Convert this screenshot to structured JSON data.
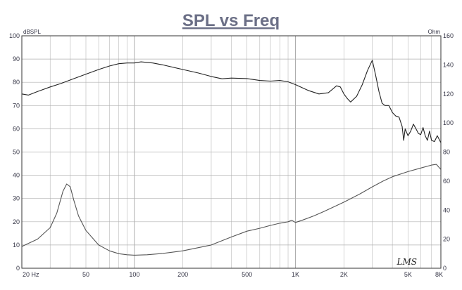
{
  "chart_data": {
    "type": "line",
    "title": "SPL vs Freq",
    "left_axis_unit": "dBSPL",
    "right_axis_unit": "Ohm",
    "x_scale": "log",
    "xlim": [
      20,
      8000
    ],
    "ylim_left": [
      0,
      100
    ],
    "ylim_right": [
      0,
      160
    ],
    "grid": true,
    "x_ticks": [
      {
        "value": 20,
        "label": "20  Hz"
      },
      {
        "value": 50,
        "label": "50"
      },
      {
        "value": 100,
        "label": "100"
      },
      {
        "value": 200,
        "label": "200"
      },
      {
        "value": 500,
        "label": "500"
      },
      {
        "value": 1000,
        "label": "1K"
      },
      {
        "value": 2000,
        "label": "2K"
      },
      {
        "value": 5000,
        "label": "5K"
      },
      {
        "value": 8000,
        "label": "8K"
      }
    ],
    "y_ticks_left": [
      0,
      10,
      20,
      30,
      40,
      50,
      60,
      70,
      80,
      90,
      100
    ],
    "y_ticks_right": [
      0,
      20,
      40,
      60,
      80,
      100,
      120,
      140,
      160
    ],
    "logo_text": "LMS",
    "series": [
      {
        "axis": "left",
        "color": "#222222",
        "points": [
          [
            20,
            75
          ],
          [
            22,
            74.5
          ],
          [
            25,
            76
          ],
          [
            30,
            78
          ],
          [
            35,
            79.5
          ],
          [
            40,
            81
          ],
          [
            50,
            83.5
          ],
          [
            60,
            85.5
          ],
          [
            70,
            87
          ],
          [
            80,
            88
          ],
          [
            90,
            88.3
          ],
          [
            100,
            88.3
          ],
          [
            110,
            88.8
          ],
          [
            130,
            88.3
          ],
          [
            150,
            87.5
          ],
          [
            200,
            85.5
          ],
          [
            250,
            84
          ],
          [
            300,
            82.5
          ],
          [
            350,
            81.5
          ],
          [
            400,
            81.8
          ],
          [
            500,
            81.6
          ],
          [
            600,
            80.8
          ],
          [
            700,
            80.5
          ],
          [
            800,
            80.8
          ],
          [
            900,
            80.2
          ],
          [
            1000,
            79
          ],
          [
            1200,
            76.5
          ],
          [
            1400,
            75
          ],
          [
            1600,
            75.5
          ],
          [
            1800,
            78.5
          ],
          [
            1900,
            78
          ],
          [
            2000,
            75
          ],
          [
            2100,
            73
          ],
          [
            2200,
            71.5
          ],
          [
            2400,
            74
          ],
          [
            2600,
            79
          ],
          [
            2800,
            85
          ],
          [
            3000,
            89.5
          ],
          [
            3150,
            83
          ],
          [
            3300,
            76
          ],
          [
            3450,
            71
          ],
          [
            3600,
            70
          ],
          [
            3800,
            70
          ],
          [
            4000,
            67
          ],
          [
            4200,
            65.5
          ],
          [
            4400,
            65
          ],
          [
            4600,
            61
          ],
          [
            4700,
            55
          ],
          [
            4800,
            60
          ],
          [
            5000,
            57
          ],
          [
            5200,
            59
          ],
          [
            5400,
            62
          ],
          [
            5600,
            60
          ],
          [
            5800,
            58
          ],
          [
            6000,
            57.5
          ],
          [
            6200,
            60.5
          ],
          [
            6400,
            57
          ],
          [
            6600,
            55
          ],
          [
            6800,
            59
          ],
          [
            7000,
            55
          ],
          [
            7300,
            54.5
          ],
          [
            7600,
            57
          ],
          [
            8000,
            54
          ]
        ]
      },
      {
        "axis": "right",
        "color": "#555555",
        "points": [
          [
            20,
            15
          ],
          [
            25,
            20
          ],
          [
            30,
            28
          ],
          [
            33,
            38
          ],
          [
            36,
            53
          ],
          [
            38,
            58
          ],
          [
            40,
            56
          ],
          [
            42,
            47
          ],
          [
            45,
            36
          ],
          [
            50,
            26
          ],
          [
            60,
            16
          ],
          [
            70,
            12
          ],
          [
            80,
            10
          ],
          [
            90,
            9.3
          ],
          [
            100,
            9
          ],
          [
            120,
            9.3
          ],
          [
            150,
            10.2
          ],
          [
            200,
            12
          ],
          [
            300,
            16
          ],
          [
            400,
            21.5
          ],
          [
            500,
            25.5
          ],
          [
            600,
            27.5
          ],
          [
            700,
            29.5
          ],
          [
            800,
            31
          ],
          [
            900,
            32
          ],
          [
            950,
            33
          ],
          [
            1000,
            31.5
          ],
          [
            1100,
            33
          ],
          [
            1300,
            36
          ],
          [
            1500,
            39
          ],
          [
            2000,
            45.5
          ],
          [
            2500,
            51
          ],
          [
            3000,
            56
          ],
          [
            3500,
            60
          ],
          [
            4000,
            63
          ],
          [
            5000,
            66.5
          ],
          [
            6000,
            69
          ],
          [
            7000,
            71
          ],
          [
            7500,
            71.5
          ],
          [
            8000,
            68
          ]
        ]
      }
    ]
  }
}
